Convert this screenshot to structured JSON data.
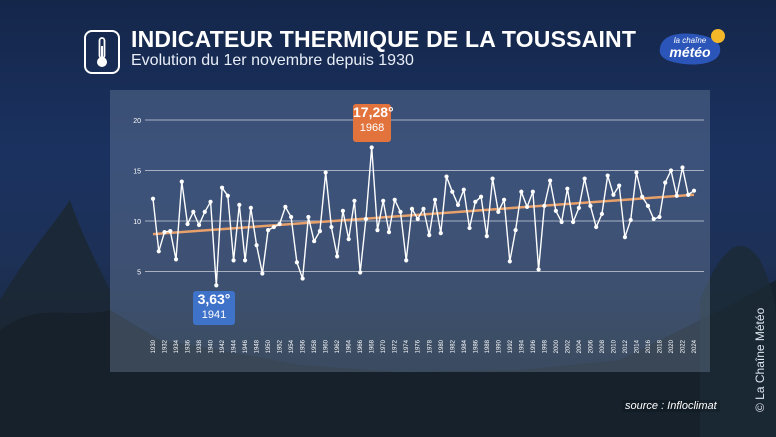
{
  "header": {
    "title": "INDICATEUR THERMIQUE DE LA TOUSSAINT",
    "subtitle": "Evolution du 1er novembre depuis 1930",
    "thermometer_icon": "thermometer-icon"
  },
  "logo": {
    "line1": "la chaîne",
    "line2": "météo",
    "icon": "sun-icon"
  },
  "source": "source : Infloclimat",
  "credit": "© La Chaîne Météo",
  "colors": {
    "line": "#ffffff",
    "trend": "#e8a06a",
    "max": "#e2733d",
    "min": "#3f72c9"
  },
  "chart_data": {
    "type": "line",
    "title": "INDICATEUR THERMIQUE DE LA TOUSSAINT",
    "xlabel": "",
    "ylabel": "",
    "ylim": [
      0,
      20
    ],
    "yticks": [
      "5",
      "10",
      "15",
      "20"
    ],
    "years": [
      1930,
      1931,
      1932,
      1933,
      1934,
      1935,
      1936,
      1937,
      1938,
      1939,
      1940,
      1941,
      1942,
      1943,
      1944,
      1945,
      1946,
      1947,
      1948,
      1949,
      1950,
      1951,
      1952,
      1953,
      1954,
      1955,
      1956,
      1957,
      1958,
      1959,
      1960,
      1961,
      1962,
      1963,
      1964,
      1965,
      1966,
      1967,
      1968,
      1969,
      1970,
      1971,
      1972,
      1973,
      1974,
      1975,
      1976,
      1977,
      1978,
      1979,
      1980,
      1981,
      1982,
      1983,
      1984,
      1985,
      1986,
      1987,
      1988,
      1989,
      1990,
      1991,
      1992,
      1993,
      1994,
      1995,
      1996,
      1997,
      1998,
      1999,
      2000,
      2001,
      2002,
      2003,
      2004,
      2005,
      2006,
      2007,
      2008,
      2009,
      2010,
      2011,
      2012,
      2013,
      2014,
      2015,
      2016,
      2017,
      2018,
      2019,
      2020,
      2021,
      2022,
      2023,
      2024
    ],
    "xtick_labels": [
      "1930",
      "1932",
      "1934",
      "1936",
      "1938",
      "1940",
      "1942",
      "1944",
      "1946",
      "1948",
      "1950",
      "1952",
      "1954",
      "1956",
      "1958",
      "1960",
      "1962",
      "1964",
      "1966",
      "1968",
      "1970",
      "1972",
      "1974",
      "1976",
      "1978",
      "1980",
      "1982",
      "1984",
      "1986",
      "1988",
      "1990",
      "1992",
      "1994",
      "1996",
      "1998",
      "2000",
      "2002",
      "2004",
      "2006",
      "2008",
      "2010",
      "2012",
      "2014",
      "2016",
      "2018",
      "2020",
      "2022",
      "2024"
    ],
    "values": [
      12.2,
      7.0,
      8.9,
      9.0,
      6.2,
      13.9,
      9.7,
      10.9,
      9.6,
      10.9,
      11.9,
      3.63,
      13.3,
      12.5,
      6.1,
      11.6,
      6.1,
      11.3,
      7.6,
      4.8,
      9.1,
      9.4,
      9.7,
      11.4,
      10.4,
      5.9,
      4.3,
      10.4,
      8.0,
      9.0,
      14.8,
      9.4,
      6.5,
      11.0,
      8.2,
      12.0,
      4.9,
      10.2,
      17.28,
      9.1,
      12.0,
      8.9,
      12.1,
      10.9,
      6.1,
      11.2,
      10.2,
      11.2,
      8.6,
      12.1,
      8.8,
      14.4,
      12.9,
      11.6,
      13.1,
      9.3,
      11.9,
      12.4,
      8.5,
      14.2,
      10.9,
      12.1,
      6.0,
      9.1,
      12.9,
      11.4,
      12.9,
      5.2,
      11.5,
      14.0,
      11.0,
      9.9,
      13.2,
      9.9,
      11.3,
      14.2,
      11.5,
      9.4,
      10.7,
      14.5,
      12.6,
      13.5,
      8.4,
      10.1,
      14.8,
      12.4,
      11.5,
      10.2,
      10.4,
      13.8,
      15.0,
      12.5,
      15.3,
      12.6,
      13.0
    ],
    "trend": {
      "start": 8.7,
      "end": 12.6
    },
    "max": {
      "value_label": "17,28°",
      "year_label": "1968"
    },
    "min": {
      "value_label": "3,63°",
      "year_label": "1941"
    }
  }
}
